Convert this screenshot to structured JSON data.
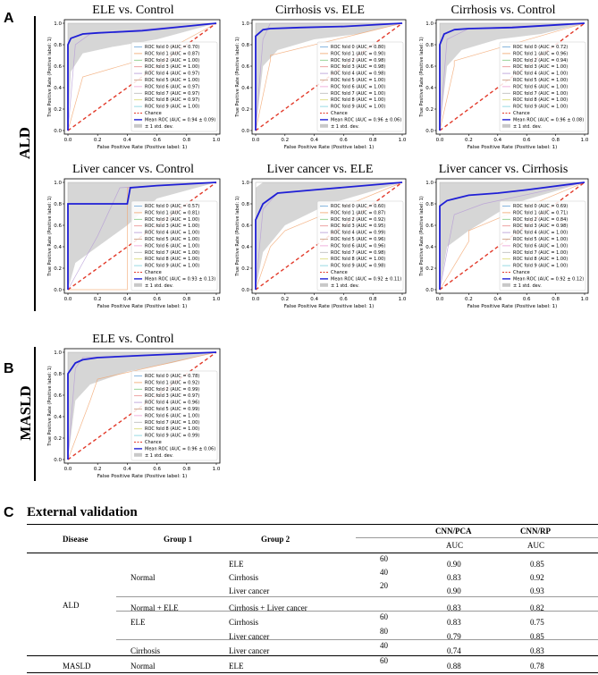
{
  "labels": {
    "A": "A",
    "B": "B",
    "C": "C",
    "ald": "ALD",
    "masld": "MASLD"
  },
  "chart_common": {
    "xlabel": "False Positive Rate (Positive label: 1)",
    "ylabel": "True Positive Rate (Positive label: 1)",
    "xticks": [
      "0.0",
      "0.2",
      "0.4",
      "0.6",
      "0.8",
      "1.0"
    ],
    "yticks": [
      "0.0",
      "0.2",
      "0.4",
      "0.6",
      "0.8",
      "1.0"
    ],
    "chance_label": "Chance",
    "std_label": "± 1 std. dev."
  },
  "chart_data": [
    {
      "type": "line",
      "title": "ELE vs. Control",
      "xlabel": "False Positive Rate (Positive label: 1)",
      "ylabel": "True Positive Rate (Positive label: 1)",
      "xlim": [
        0,
        1
      ],
      "ylim": [
        0,
        1
      ],
      "fold_aucs": [
        "0.70",
        "0.87",
        "1.00",
        "1.00",
        "0.97",
        "1.00",
        "0.97",
        "0.97",
        "0.97",
        "1.00"
      ],
      "mean_label": "Mean ROC (AUC = 0.94 ± 0.09)",
      "mean_roc": {
        "x": [
          0,
          0,
          0.02,
          0.1,
          0.2,
          0.5,
          1.0
        ],
        "y": [
          0,
          0.8,
          0.86,
          0.9,
          0.91,
          0.93,
          1.0
        ]
      },
      "std_upper": {
        "x": [
          0,
          0,
          0.1,
          1.0
        ],
        "y": [
          0,
          1.0,
          1.0,
          1.0
        ]
      },
      "std_lower": {
        "x": [
          0,
          0.02,
          0.1,
          0.3,
          0.6,
          1.0
        ],
        "y": [
          0,
          0.55,
          0.72,
          0.78,
          0.85,
          1.0
        ]
      },
      "folds": [
        {
          "x": [
            0,
            0.1,
            0.1,
            0.6,
            1
          ],
          "y": [
            0,
            0.5,
            0.5,
            0.7,
            1
          ]
        },
        {
          "x": [
            0,
            0.05,
            0.15,
            1
          ],
          "y": [
            0,
            0.8,
            0.9,
            1
          ]
        },
        {
          "x": [
            0,
            0,
            1
          ],
          "y": [
            0,
            1,
            1
          ]
        }
      ]
    },
    {
      "type": "line",
      "title": "Cirrhosis vs. ELE",
      "xlabel": "False Positive Rate (Positive label: 1)",
      "ylabel": "True Positive Rate (Positive label: 1)",
      "xlim": [
        0,
        1
      ],
      "ylim": [
        0,
        1
      ],
      "fold_aucs": [
        "0.80",
        "0.90",
        "0.98",
        "0.98",
        "0.98",
        "1.00",
        "1.00",
        "1.00",
        "1.00",
        "1.00"
      ],
      "mean_label": "Mean ROC (AUC = 0.96 ± 0.06)",
      "mean_roc": {
        "x": [
          0,
          0,
          0.05,
          0.1,
          0.3,
          0.6,
          1.0
        ],
        "y": [
          0,
          0.88,
          0.94,
          0.95,
          0.96,
          0.97,
          1.0
        ]
      },
      "std_upper": {
        "x": [
          0,
          0,
          1.0
        ],
        "y": [
          0,
          1.0,
          1.0
        ]
      },
      "std_lower": {
        "x": [
          0,
          0.05,
          0.15,
          0.4,
          0.7,
          1.0
        ],
        "y": [
          0,
          0.6,
          0.75,
          0.85,
          0.9,
          1.0
        ]
      },
      "folds": [
        {
          "x": [
            0,
            0.1,
            0.1,
            1
          ],
          "y": [
            0,
            0.65,
            0.7,
            1
          ]
        },
        {
          "x": [
            0,
            0.05,
            0.1,
            1
          ],
          "y": [
            0,
            0.85,
            1,
            1
          ]
        },
        {
          "x": [
            0,
            0,
            1
          ],
          "y": [
            0,
            1,
            1
          ]
        }
      ]
    },
    {
      "type": "line",
      "title": "Cirrhosis vs. Control",
      "xlabel": "False Positive Rate (Positive label: 1)",
      "ylabel": "True Positive Rate (Positive label: 1)",
      "xlim": [
        0,
        1
      ],
      "ylim": [
        0,
        1
      ],
      "fold_aucs": [
        "0.72",
        "0.96",
        "0.94",
        "1.00",
        "1.00",
        "1.00",
        "1.00",
        "1.00",
        "1.00",
        "1.00"
      ],
      "mean_label": "Mean ROC (AUC = 0.96 ± 0.08)",
      "mean_roc": {
        "x": [
          0,
          0,
          0.03,
          0.1,
          0.2,
          0.5,
          1.0
        ],
        "y": [
          0,
          0.8,
          0.9,
          0.94,
          0.95,
          0.96,
          1.0
        ]
      },
      "std_upper": {
        "x": [
          0,
          0,
          1.0
        ],
        "y": [
          0,
          1.0,
          1.0
        ]
      },
      "std_lower": {
        "x": [
          0,
          0.05,
          0.15,
          0.4,
          0.7,
          1.0
        ],
        "y": [
          0,
          0.6,
          0.75,
          0.85,
          0.9,
          1.0
        ]
      },
      "folds": [
        {
          "x": [
            0,
            0.1,
            0.1,
            1
          ],
          "y": [
            0,
            0.6,
            0.65,
            1
          ]
        },
        {
          "x": [
            0,
            0.05,
            0.2,
            1
          ],
          "y": [
            0,
            0.85,
            0.95,
            1
          ]
        },
        {
          "x": [
            0,
            0,
            1
          ],
          "y": [
            0,
            1,
            1
          ]
        }
      ]
    },
    {
      "type": "line",
      "title": "Liver cancer vs. Control",
      "xlabel": "False Positive Rate (Positive label: 1)",
      "ylabel": "True Positive Rate (Positive label: 1)",
      "xlim": [
        0,
        1
      ],
      "ylim": [
        0,
        1
      ],
      "fold_aucs": [
        "0.57",
        "0.81",
        "1.00",
        "1.00",
        "1.00",
        "1.00",
        "1.00",
        "1.00",
        "1.00",
        "1.00"
      ],
      "mean_label": "Mean ROC (AUC = 0.93 ± 0.13)",
      "mean_roc": {
        "x": [
          0,
          0,
          0.4,
          0.42,
          0.6,
          1.0
        ],
        "y": [
          0,
          0.8,
          0.8,
          0.95,
          0.97,
          1.0
        ]
      },
      "std_upper": {
        "x": [
          0,
          0,
          1.0
        ],
        "y": [
          0,
          1.0,
          1.0
        ]
      },
      "std_lower": {
        "x": [
          0,
          0.05,
          0.4,
          0.6,
          1.0
        ],
        "y": [
          0,
          0.25,
          0.6,
          0.85,
          1.0
        ]
      },
      "folds": [
        {
          "x": [
            0,
            0.4,
            0.4,
            1
          ],
          "y": [
            0,
            0.0,
            0.95,
            1
          ]
        },
        {
          "x": [
            0,
            0.2,
            0.35,
            1
          ],
          "y": [
            0,
            0.5,
            0.95,
            1
          ]
        },
        {
          "x": [
            0,
            0,
            1
          ],
          "y": [
            0,
            1,
            1
          ]
        }
      ]
    },
    {
      "type": "line",
      "title": "Liver cancer vs. ELE",
      "xlabel": "False Positive Rate (Positive label: 1)",
      "ylabel": "True Positive Rate (Positive label: 1)",
      "xlim": [
        0,
        1
      ],
      "ylim": [
        0,
        1
      ],
      "fold_aucs": [
        "0.60",
        "0.87",
        "0.92",
        "0.95",
        "0.99",
        "0.96",
        "0.96",
        "0.98",
        "1.00",
        "0.98"
      ],
      "mean_label": "Mean ROC (AUC = 0.92 ± 0.11)",
      "mean_roc": {
        "x": [
          0,
          0,
          0.05,
          0.1,
          0.15,
          0.4,
          1.0
        ],
        "y": [
          0,
          0.65,
          0.8,
          0.85,
          0.9,
          0.93,
          1.0
        ]
      },
      "std_upper": {
        "x": [
          0,
          0,
          0.05,
          1.0
        ],
        "y": [
          0,
          0.95,
          1.0,
          1.0
        ]
      },
      "std_lower": {
        "x": [
          0,
          0.05,
          0.2,
          0.5,
          1.0
        ],
        "y": [
          0,
          0.35,
          0.6,
          0.8,
          1.0
        ]
      },
      "folds": [
        {
          "x": [
            0,
            0.1,
            0.2,
            1
          ],
          "y": [
            0,
            0.4,
            0.55,
            1
          ]
        },
        {
          "x": [
            0,
            0.05,
            0.15,
            1
          ],
          "y": [
            0,
            0.75,
            0.9,
            1
          ]
        },
        {
          "x": [
            0,
            0,
            1
          ],
          "y": [
            0,
            1,
            1
          ]
        }
      ]
    },
    {
      "type": "line",
      "title": "Liver cancer vs. Cirrhosis",
      "xlabel": "False Positive Rate (Positive label: 1)",
      "ylabel": "True Positive Rate (Positive label: 1)",
      "xlim": [
        0,
        1
      ],
      "ylim": [
        0,
        1
      ],
      "fold_aucs": [
        "0.69",
        "0.71",
        "0.84",
        "0.98",
        "1.00",
        "1.00",
        "1.00",
        "1.00",
        "1.00",
        "1.00"
      ],
      "mean_label": "Mean ROC (AUC = 0.92 ± 0.12)",
      "mean_roc": {
        "x": [
          0,
          0,
          0.05,
          0.2,
          0.4,
          0.6,
          1.0
        ],
        "y": [
          0,
          0.78,
          0.83,
          0.88,
          0.9,
          0.93,
          1.0
        ]
      },
      "std_upper": {
        "x": [
          0,
          0,
          1.0
        ],
        "y": [
          0,
          1.0,
          1.0
        ]
      },
      "std_lower": {
        "x": [
          0,
          0.05,
          0.2,
          0.5,
          1.0
        ],
        "y": [
          0,
          0.4,
          0.55,
          0.8,
          1.0
        ]
      },
      "folds": [
        {
          "x": [
            0,
            0.2,
            0.2,
            1
          ],
          "y": [
            0,
            0.45,
            0.55,
            1
          ]
        },
        {
          "x": [
            0,
            0.1,
            0.3,
            1
          ],
          "y": [
            0,
            0.7,
            0.8,
            1
          ]
        },
        {
          "x": [
            0,
            0,
            1
          ],
          "y": [
            0,
            1,
            1
          ]
        }
      ]
    },
    {
      "type": "line",
      "title": "ELE vs. Control",
      "xlabel": "False Positive Rate (Positive label: 1)",
      "ylabel": "True Positive Rate (Positive label: 1)",
      "xlim": [
        0,
        1
      ],
      "ylim": [
        0,
        1
      ],
      "fold_aucs": [
        "0.78",
        "0.92",
        "0.99",
        "0.97",
        "0.96",
        "0.99",
        "1.00",
        "1.00",
        "1.00",
        "0.99"
      ],
      "mean_label": "Mean ROC (AUC = 0.96 ± 0.06)",
      "mean_roc": {
        "x": [
          0,
          0,
          0.05,
          0.1,
          0.2,
          0.5,
          1.0
        ],
        "y": [
          0,
          0.8,
          0.9,
          0.93,
          0.95,
          0.97,
          1.0
        ]
      },
      "std_upper": {
        "x": [
          0,
          0,
          1.0
        ],
        "y": [
          0,
          1.0,
          1.0
        ]
      },
      "std_lower": {
        "x": [
          0,
          0.05,
          0.15,
          0.4,
          0.7,
          1.0
        ],
        "y": [
          0,
          0.55,
          0.7,
          0.82,
          0.9,
          1.0
        ]
      },
      "folds": [
        {
          "x": [
            0,
            0.15,
            0.2,
            1
          ],
          "y": [
            0,
            0.55,
            0.75,
            1
          ]
        },
        {
          "x": [
            0,
            0.05,
            0.1,
            1
          ],
          "y": [
            0,
            0.85,
            0.95,
            1
          ]
        },
        {
          "x": [
            0,
            0,
            1
          ],
          "y": [
            0,
            1,
            1
          ]
        }
      ]
    }
  ],
  "table": {
    "title": "External validation",
    "headers": {
      "disease": "Disease",
      "group1": "Group 1",
      "group2": "Group 2",
      "cnn_pca": "CNN/PCA",
      "cnn_rp": "CNN/RP",
      "auc1": "AUC",
      "auc2": "AUC"
    },
    "rows": [
      {
        "disease": "",
        "group1": "",
        "group2": "ELE",
        "n": "60",
        "pca": "0.90",
        "rp": "0.85"
      },
      {
        "disease": "",
        "group1": "Normal",
        "group2": "Cirrhosis",
        "n": "40",
        "pca": "0.83",
        "rp": "0.92"
      },
      {
        "disease": "",
        "group1": "",
        "group2": "Liver cancer",
        "n": "20",
        "pca": "0.90",
        "rp": "0.93"
      },
      {
        "disease": "ALD",
        "group1": "Normal + ELE",
        "group2": "Cirrhosis + Liver cancer",
        "n": "",
        "pca": "0.83",
        "rp": "0.82"
      },
      {
        "disease": "",
        "group1": "ELE",
        "group2": "Cirrhosis",
        "n": "60",
        "pca": "0.83",
        "rp": "0.75"
      },
      {
        "disease": "",
        "group1": "",
        "group2": "Liver cancer",
        "n": "80",
        "pca": "0.79",
        "rp": "0.85"
      },
      {
        "disease": "",
        "group1": "Cirrhosis",
        "group2": "Liver cancer",
        "n": "40",
        "pca": "0.74",
        "rp": "0.83"
      },
      {
        "disease": "MASLD",
        "group1": "Normal",
        "group2": "ELE",
        "n": "60",
        "pca": "0.88",
        "rp": "0.78"
      }
    ]
  },
  "colors": {
    "mean": "#1f1fd6",
    "chance": "#e23a2a",
    "std": "#c8c8c8"
  }
}
